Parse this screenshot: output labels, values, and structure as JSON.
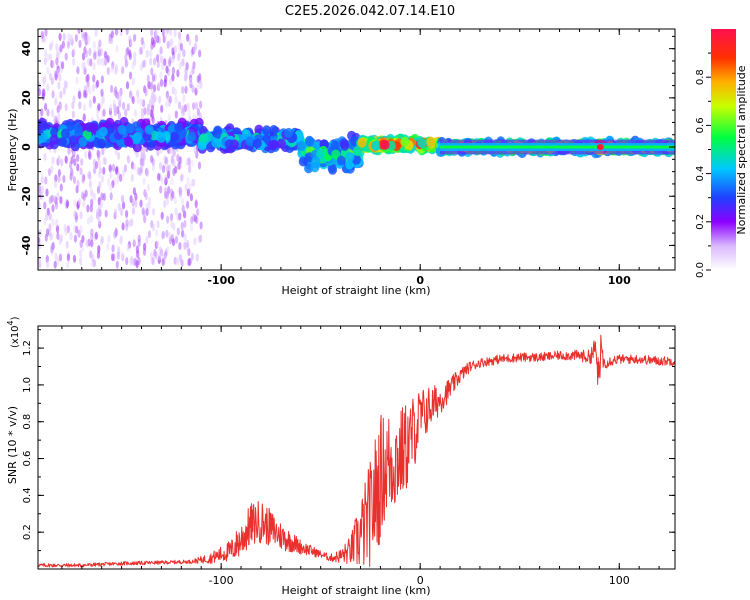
{
  "title": "C2E5.2026.042.07.14.E10",
  "chart_data": [
    {
      "type": "heatmap",
      "xlabel": "Height of straight line (km)",
      "ylabel": "Frequency (Hz)",
      "xlim": [
        -192,
        128
      ],
      "ylim": [
        -50,
        48
      ],
      "xticks": [
        -100,
        0,
        100
      ],
      "xtick_labels": [
        "-100",
        "0",
        "100"
      ],
      "yticks": [
        -40,
        -20,
        0,
        20,
        40
      ],
      "ytick_labels": [
        "-40",
        "-20",
        "0",
        "20",
        "40"
      ],
      "colorbar": {
        "label": "Normalized spectral amplitude",
        "range": [
          0,
          1
        ],
        "ticks": [
          0.0,
          0.2,
          0.4,
          0.6,
          0.8
        ],
        "tick_labels": [
          "0.0",
          "0.2",
          "0.4",
          "0.6",
          "0.8"
        ],
        "colormap": "rainbow"
      },
      "regions": [
        {
          "x": [
            -192,
            -110
          ],
          "freq_center": 0,
          "band_halfwidth": 48,
          "amplitude": 0.15,
          "note": "diffuse noise"
        },
        {
          "x": [
            -192,
            -110
          ],
          "freq_center": 5,
          "band_halfwidth": 6,
          "amplitude": 0.35
        },
        {
          "x": [
            -110,
            -60
          ],
          "freq_center": 3,
          "band_halfwidth": 5,
          "amplitude": 0.4
        },
        {
          "x": [
            -60,
            -30
          ],
          "freq_center": -3,
          "band_halfwidth": 8,
          "amplitude": 0.45
        },
        {
          "x": [
            -30,
            10
          ],
          "freq_center": 1,
          "band_halfwidth": 3,
          "amplitude": 0.7
        },
        {
          "x": [
            10,
            128
          ],
          "freq_center": 0,
          "band_halfwidth": 3,
          "amplitude": 0.55
        },
        {
          "x": [
            89,
            92
          ],
          "freq_center": 0,
          "band_halfwidth": 2,
          "amplitude": 0.95
        }
      ]
    },
    {
      "type": "line",
      "xlabel": "Height of straight line (km)",
      "ylabel": "SNR (10 * v/v)",
      "y_multiplier_label": "(x10",
      "y_multiplier_exp": "4",
      "y_multiplier_close": ")",
      "xlim": [
        -192,
        128
      ],
      "ylim": [
        0,
        1.32
      ],
      "xticks": [
        -100,
        0,
        100
      ],
      "xtick_labels": [
        "-100",
        "0",
        "100"
      ],
      "yticks": [
        0.2,
        0.4,
        0.6,
        0.8,
        1.0,
        1.2
      ],
      "ytick_labels": [
        "0.2",
        "0.4",
        "0.6",
        "0.8",
        "1.0",
        "1.2"
      ],
      "color": "#e8302c",
      "series": [
        {
          "name": "SNR",
          "x": [
            -192,
            -170,
            -150,
            -130,
            -115,
            -105,
            -95,
            -90,
            -85,
            -80,
            -75,
            -70,
            -65,
            -60,
            -55,
            -50,
            -45,
            -40,
            -35,
            -30,
            -25,
            -22,
            -20,
            -18,
            -15,
            -12,
            -10,
            -7,
            -5,
            -2,
            0,
            5,
            10,
            15,
            20,
            25,
            30,
            35,
            40,
            50,
            60,
            70,
            80,
            85,
            88,
            90,
            91,
            92,
            95,
            100,
            110,
            120,
            128
          ],
          "y": [
            0.02,
            0.02,
            0.03,
            0.035,
            0.04,
            0.06,
            0.1,
            0.16,
            0.24,
            0.26,
            0.22,
            0.18,
            0.15,
            0.12,
            0.1,
            0.08,
            0.06,
            0.07,
            0.1,
            0.18,
            0.3,
            0.42,
            0.5,
            0.55,
            0.58,
            0.6,
            0.62,
            0.66,
            0.7,
            0.78,
            0.82,
            0.88,
            0.92,
            0.98,
            1.05,
            1.1,
            1.12,
            1.13,
            1.14,
            1.15,
            1.15,
            1.16,
            1.16,
            1.15,
            1.2,
            1.0,
            1.25,
            1.12,
            1.13,
            1.14,
            1.14,
            1.13,
            1.13
          ],
          "noise": [
            0.01,
            0.01,
            0.01,
            0.01,
            0.01,
            0.03,
            0.06,
            0.1,
            0.12,
            0.12,
            0.1,
            0.08,
            0.06,
            0.04,
            0.03,
            0.02,
            0.02,
            0.04,
            0.08,
            0.2,
            0.3,
            0.35,
            0.35,
            0.3,
            0.3,
            0.28,
            0.26,
            0.25,
            0.22,
            0.2,
            0.16,
            0.12,
            0.08,
            0.06,
            0.04,
            0.03,
            0.025,
            0.025,
            0.025,
            0.025,
            0.025,
            0.025,
            0.03,
            0.04,
            0.06,
            0.12,
            0.08,
            0.04,
            0.03,
            0.025,
            0.025,
            0.025,
            0.025
          ]
        }
      ]
    }
  ]
}
